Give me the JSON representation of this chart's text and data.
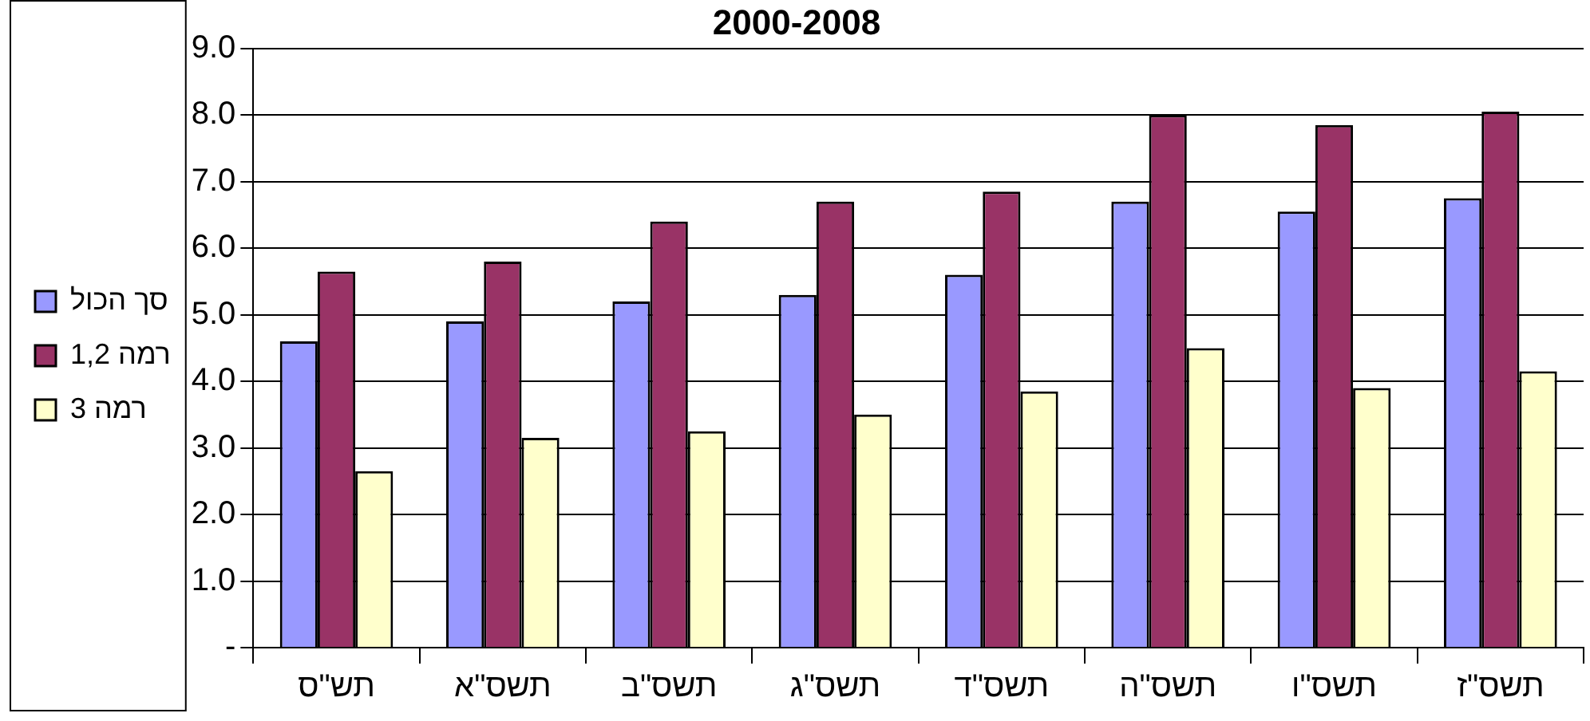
{
  "chart_data": {
    "type": "bar",
    "title": "2000-2008",
    "categories": [
      "תש\"ס",
      "תשס\"א",
      "תשס\"ב",
      "תשס\"ג",
      "תשס\"ד",
      "תשס\"ה",
      "תשס\"ו",
      "תשס\"ז"
    ],
    "series": [
      {
        "name": "סך הכול",
        "color": "#9999ff",
        "values": [
          4.6,
          4.9,
          5.2,
          5.3,
          5.6,
          6.7,
          6.55,
          6.75
        ]
      },
      {
        "name": "רמה 1,2",
        "color": "#993366",
        "values": [
          5.65,
          5.8,
          6.4,
          6.7,
          6.85,
          8.0,
          7.85,
          8.05
        ]
      },
      {
        "name": "רמה 3",
        "color": "#ffffcc",
        "values": [
          2.65,
          3.15,
          3.25,
          3.5,
          3.85,
          4.5,
          3.9,
          4.15
        ]
      }
    ],
    "ylim": [
      0,
      9
    ],
    "yticks": [
      {
        "value": 0,
        "label": "-"
      },
      {
        "value": 1,
        "label": "1.0"
      },
      {
        "value": 2,
        "label": "2.0"
      },
      {
        "value": 3,
        "label": "3.0"
      },
      {
        "value": 4,
        "label": "4.0"
      },
      {
        "value": 5,
        "label": "5.0"
      },
      {
        "value": 6,
        "label": "6.0"
      },
      {
        "value": 7,
        "label": "7.0"
      },
      {
        "value": 8,
        "label": "8.0"
      },
      {
        "value": 9,
        "label": "9.0"
      }
    ],
    "grid": "y",
    "legend": "left"
  }
}
